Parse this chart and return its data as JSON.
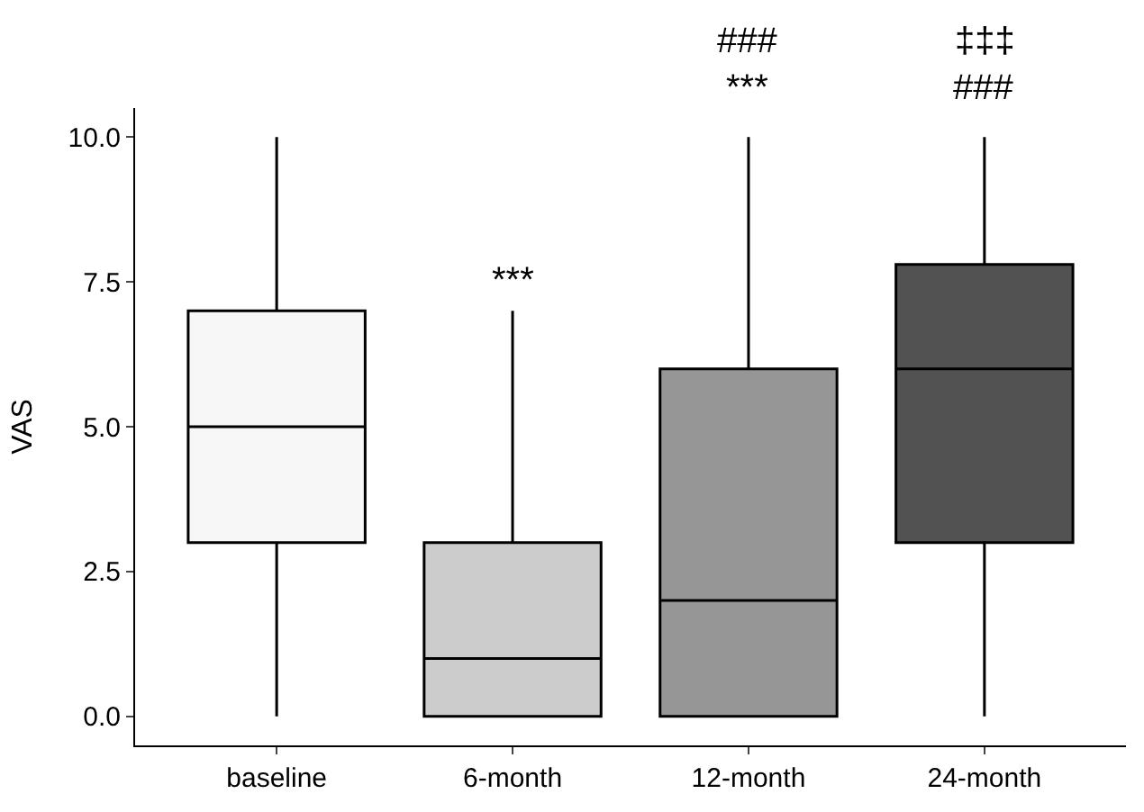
{
  "chart_data": {
    "type": "box",
    "ylabel": "VAS",
    "categories": [
      "baseline",
      "6-month",
      "12-month",
      "24-month"
    ],
    "boxes": [
      {
        "low": 0,
        "q1": 3,
        "median": 5,
        "q3": 7,
        "high": 10
      },
      {
        "low": 0,
        "q1": 0,
        "median": 1,
        "q3": 3,
        "high": 7
      },
      {
        "low": 0,
        "q1": 0,
        "median": 2,
        "q3": 6,
        "high": 10
      },
      {
        "low": 0,
        "q1": 3,
        "median": 6,
        "q3": 7.8,
        "high": 10
      }
    ],
    "colors": [
      "#f7f7f7",
      "#cccccc",
      "#969696",
      "#525252"
    ],
    "ylim": [
      -0.5,
      10.5
    ],
    "yticks": [
      {
        "value": 0,
        "label": "0.0"
      },
      {
        "value": 2.5,
        "label": "2.5"
      },
      {
        "value": 5,
        "label": "5.0"
      },
      {
        "value": 7.5,
        "label": "7.5"
      },
      {
        "value": 10,
        "label": "10.0"
      }
    ],
    "legend": false,
    "annotations": [
      "***",
      "***",
      "###",
      "###",
      "‡‡‡"
    ]
  }
}
